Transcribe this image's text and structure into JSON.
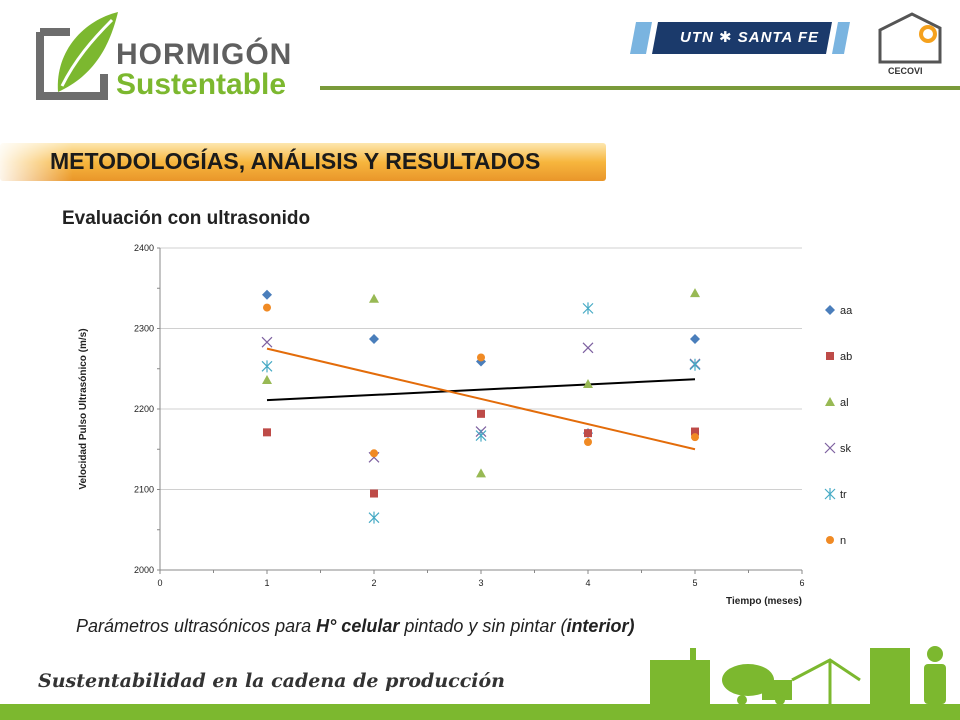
{
  "header": {
    "logo_line1": "HORMIGÓN",
    "logo_line2": "Sustentable",
    "utn_label": "UTN ✱ SANTA FE",
    "cecovi_label": "CECOVI"
  },
  "section": {
    "title": "METODOLOGÍAS, ANÁLISIS Y RESULTADOS",
    "subtitle": "Evaluación con ultrasonido"
  },
  "caption": {
    "part1": "Parámetros ultrasónicos para ",
    "part2": "H° celular",
    "part3": " pintado y sin pintar (",
    "part4": "interior)"
  },
  "footer": {
    "text": "Sustentabilidad en la cadena de producción"
  },
  "colors": {
    "green": "#7cb82f",
    "orange": "#f5a11d",
    "navy": "#1b3a6b"
  },
  "chart_data": {
    "type": "scatter",
    "title": "",
    "xlabel": "Tiempo   (meses)",
    "ylabel": "Velocidad Pulso Ultrasónico (m/s)",
    "xlim": [
      0,
      6
    ],
    "ylim": [
      2000,
      2400
    ],
    "x_ticks": [
      0,
      1,
      2,
      3,
      4,
      5,
      6
    ],
    "y_ticks": [
      2000,
      2100,
      2200,
      2300,
      2400
    ],
    "grid": "horizontal",
    "legend_position": "right",
    "series": [
      {
        "name": "aa",
        "marker": "diamond",
        "color": "#4a7ebb",
        "points": [
          [
            1,
            2342
          ],
          [
            2,
            2287
          ],
          [
            3,
            2259
          ],
          [
            4,
            2170
          ],
          [
            5,
            2287
          ]
        ]
      },
      {
        "name": "ab",
        "marker": "square",
        "color": "#be4b48",
        "points": [
          [
            1,
            2171
          ],
          [
            2,
            2095
          ],
          [
            3,
            2194
          ],
          [
            4,
            2170
          ],
          [
            5,
            2172
          ]
        ]
      },
      {
        "name": "al",
        "marker": "triangle",
        "color": "#98b954",
        "points": [
          [
            1,
            2236
          ],
          [
            2,
            2337
          ],
          [
            3,
            2120
          ],
          [
            4,
            2231
          ],
          [
            5,
            2344
          ]
        ]
      },
      {
        "name": "sk",
        "marker": "x",
        "color": "#7d60a0",
        "points": [
          [
            1,
            2283
          ],
          [
            2,
            2140
          ],
          [
            3,
            2172
          ],
          [
            4,
            2276
          ],
          [
            5,
            2256
          ]
        ]
      },
      {
        "name": "tr",
        "marker": "star",
        "color": "#46aac5",
        "points": [
          [
            1,
            2253
          ],
          [
            2,
            2065
          ],
          [
            3,
            2167
          ],
          [
            4,
            2325
          ],
          [
            5,
            2255
          ]
        ]
      },
      {
        "name": "n",
        "marker": "circle",
        "color": "#f08a24",
        "points": [
          [
            1,
            2326
          ],
          [
            2,
            2145
          ],
          [
            3,
            2264
          ],
          [
            4,
            2159
          ],
          [
            5,
            2165
          ]
        ]
      }
    ],
    "trendlines": [
      {
        "color": "#000000",
        "from": [
          1,
          2211
        ],
        "to": [
          5,
          2237
        ]
      },
      {
        "color": "#e36c0a",
        "from": [
          1,
          2275
        ],
        "to": [
          5,
          2150
        ]
      }
    ]
  }
}
